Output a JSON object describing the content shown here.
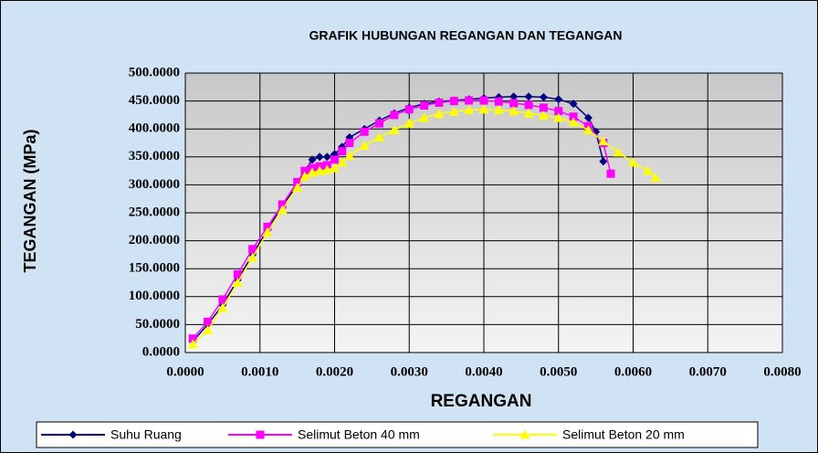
{
  "chart_data": {
    "type": "line",
    "title": "GRAFIK HUBUNGAN REGANGAN DAN TEGANGAN",
    "x_label": "REGANGAN",
    "y_label": "TEGANGAN  (MPa)",
    "xlim": [
      0,
      0.008
    ],
    "ylim": [
      0,
      500
    ],
    "xticks": [
      {
        "value": 0,
        "label": "0.0000"
      },
      {
        "value": 0.001,
        "label": "0.0010"
      },
      {
        "value": 0.002,
        "label": "0.0020"
      },
      {
        "value": 0.003,
        "label": "0.0030"
      },
      {
        "value": 0.004,
        "label": "0.0040"
      },
      {
        "value": 0.005,
        "label": "0.0050"
      },
      {
        "value": 0.006,
        "label": "0.0060"
      },
      {
        "value": 0.007,
        "label": "0.0070"
      },
      {
        "value": 0.008,
        "label": "0.0080"
      }
    ],
    "yticks": [
      {
        "value": 0,
        "label": "0.0000"
      },
      {
        "value": 50,
        "label": "50.0000"
      },
      {
        "value": 100,
        "label": "100.0000"
      },
      {
        "value": 150,
        "label": "150.0000"
      },
      {
        "value": 200,
        "label": "200.0000"
      },
      {
        "value": 250,
        "label": "250.0000"
      },
      {
        "value": 300,
        "label": "300.0000"
      },
      {
        "value": 350,
        "label": "350.0000"
      },
      {
        "value": 400,
        "label": "400.0000"
      },
      {
        "value": 450,
        "label": "450.0000"
      },
      {
        "value": 500,
        "label": "500.0000"
      }
    ],
    "grid": true,
    "legend": "bottom",
    "series": [
      {
        "name": "Suhu Ruang",
        "color": "#000080",
        "marker": "diamond",
        "x": [
          0.0001,
          0.0003,
          0.0005,
          0.0007,
          0.0009,
          0.0011,
          0.0013,
          0.0015,
          0.0016,
          0.0017,
          0.0018,
          0.0019,
          0.002,
          0.0021,
          0.0022,
          0.0024,
          0.0026,
          0.0028,
          0.003,
          0.0032,
          0.0034,
          0.0036,
          0.0038,
          0.004,
          0.0042,
          0.0044,
          0.0046,
          0.0048,
          0.005,
          0.0052,
          0.0054,
          0.0055,
          0.0056
        ],
        "values": [
          20,
          50,
          85,
          130,
          175,
          220,
          262,
          300,
          325,
          345,
          350,
          350,
          355,
          368,
          385,
          400,
          415,
          428,
          438,
          445,
          449,
          451,
          453,
          455,
          457,
          458,
          458,
          457,
          453,
          445,
          420,
          395,
          342
        ]
      },
      {
        "name": "Selimut Beton 40 mm",
        "color": "#ff00ff",
        "marker": "square",
        "x": [
          0.0001,
          0.0003,
          0.0005,
          0.0007,
          0.0009,
          0.0011,
          0.0013,
          0.0015,
          0.0016,
          0.0017,
          0.0018,
          0.0019,
          0.002,
          0.0021,
          0.0022,
          0.0024,
          0.0026,
          0.0028,
          0.003,
          0.0032,
          0.0034,
          0.0036,
          0.0038,
          0.004,
          0.0042,
          0.0044,
          0.0046,
          0.0048,
          0.005,
          0.0052,
          0.0054,
          0.0056,
          0.0057
        ],
        "values": [
          25,
          55,
          95,
          140,
          185,
          225,
          265,
          305,
          325,
          330,
          333,
          335,
          345,
          360,
          375,
          395,
          410,
          425,
          435,
          442,
          447,
          450,
          451,
          451,
          449,
          446,
          443,
          438,
          432,
          422,
          405,
          375,
          320
        ]
      },
      {
        "name": "Selimut Beton 20 mm",
        "color": "#ffff00",
        "marker": "triangle",
        "x": [
          0.0001,
          0.0003,
          0.0005,
          0.0007,
          0.0009,
          0.0011,
          0.0013,
          0.0015,
          0.0016,
          0.0017,
          0.0018,
          0.0019,
          0.002,
          0.0021,
          0.0022,
          0.0024,
          0.0026,
          0.0028,
          0.003,
          0.0032,
          0.0034,
          0.0036,
          0.0038,
          0.004,
          0.0042,
          0.0044,
          0.0046,
          0.0048,
          0.005,
          0.0052,
          0.0054,
          0.0056,
          0.0058,
          0.006,
          0.0062,
          0.0063
        ],
        "values": [
          15,
          40,
          80,
          125,
          170,
          215,
          255,
          295,
          315,
          322,
          325,
          327,
          330,
          340,
          352,
          370,
          385,
          398,
          410,
          420,
          427,
          431,
          434,
          435,
          434,
          432,
          428,
          424,
          420,
          412,
          398,
          378,
          358,
          340,
          325,
          313
        ]
      }
    ]
  }
}
